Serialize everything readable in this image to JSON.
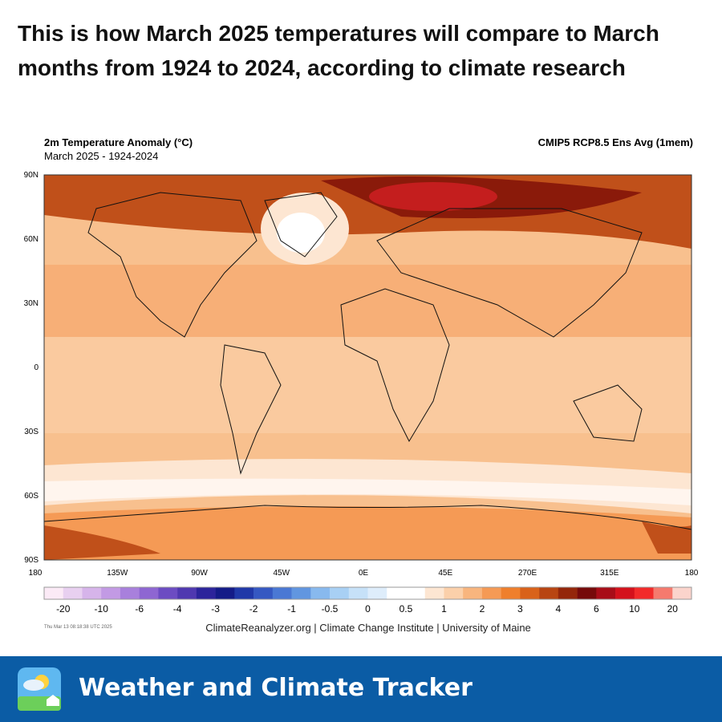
{
  "header": {
    "title": "This is how March 2025 temperatures will compare to March months from 1924 to 2024, according to climate research"
  },
  "map": {
    "title": "2m Temperature Anomaly (°C)",
    "subtitle": "March 2025 - 1924-2024",
    "model": "CMIP5 RCP8.5 Ens Avg (1mem)",
    "lat_labels": [
      "90N",
      "60N",
      "30N",
      "0",
      "30S",
      "60S",
      "90S"
    ],
    "lon_labels": [
      "180",
      "135W",
      "90W",
      "45W",
      "0E",
      "45E",
      "270E",
      "315E",
      "180"
    ]
  },
  "colorbar": {
    "colors": [
      "#fbeaf6",
      "#e8d0f0",
      "#d6b4ea",
      "#c29ae4",
      "#a880dc",
      "#8e66d2",
      "#6c4cc2",
      "#4f38b0",
      "#2c249b",
      "#141b88",
      "#2038a8",
      "#3558c2",
      "#4a78d4",
      "#6196e0",
      "#88b9ee",
      "#a8d0f4",
      "#c6e1f8",
      "#deedfb",
      "#ffffff",
      "#ffffff",
      "#fde6d2",
      "#fbd0aa",
      "#f8b57e",
      "#f59a55",
      "#ef7f2c",
      "#d9621a",
      "#b84512",
      "#94260a",
      "#760a0a",
      "#a80d18",
      "#d4111c",
      "#f22a2a",
      "#f57a6e",
      "#fbd4cc"
    ],
    "labels": [
      "-20",
      "-10",
      "-6",
      "-4",
      "-3",
      "-2",
      "-1",
      "-0.5",
      "0",
      "0.5",
      "1",
      "2",
      "3",
      "4",
      "6",
      "10",
      "20"
    ]
  },
  "footer": {
    "timestamp": "Thu Mar 13 08:18:38 UTC 2025",
    "credit": "ClimateReanalyzer.org | Climate Change Institute | University of Maine"
  },
  "banner": {
    "name": "Weather and Climate Tracker"
  }
}
